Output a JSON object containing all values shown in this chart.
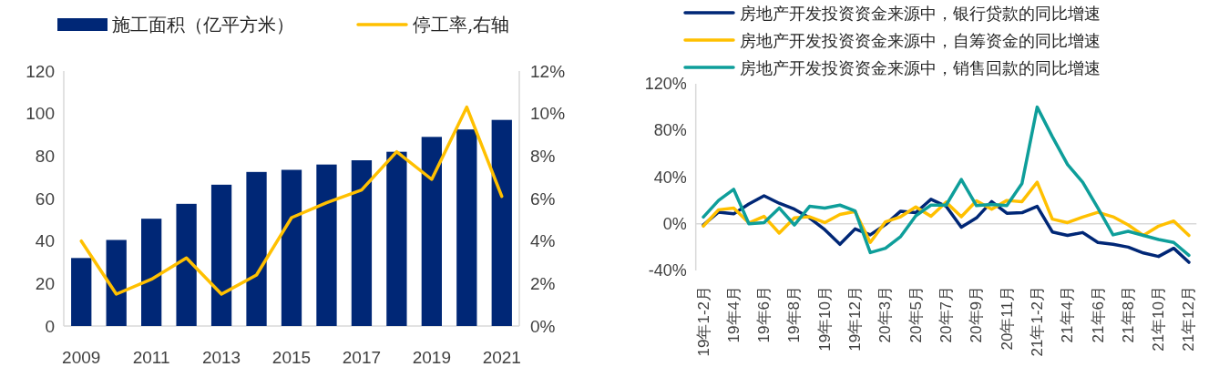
{
  "chart_data": [
    {
      "type": "bar",
      "categories": [
        "2009",
        null,
        "2011",
        null,
        "2013",
        null,
        "2015",
        null,
        "2017",
        null,
        "2019",
        null,
        "2021"
      ],
      "series": [
        {
          "name": "施工面积（亿平方米）",
          "color": "#002776",
          "values": [
            32,
            40.5,
            50.5,
            57.5,
            66.5,
            72.5,
            73.5,
            76,
            78,
            82,
            89,
            92.5,
            97
          ]
        },
        {
          "name": "停工率,右轴",
          "type": "line",
          "axis": "y2",
          "color": "#ffc000",
          "values": [
            4.0,
            1.5,
            2.2,
            3.2,
            1.5,
            2.4,
            5.1,
            5.8,
            6.4,
            8.2,
            6.9,
            10.3,
            6.1
          ]
        }
      ],
      "ylim": [
        0,
        120
      ],
      "yticks": [
        0,
        20,
        40,
        60,
        80,
        100,
        120
      ],
      "y2lim": [
        0,
        12
      ],
      "y2ticks": [
        {
          "value": 0,
          "label": "0%"
        },
        {
          "value": 2,
          "label": "2%"
        },
        {
          "value": 4,
          "label": "4%"
        },
        {
          "value": 6,
          "label": "6%"
        },
        {
          "value": 8,
          "label": "8%"
        },
        {
          "value": 10,
          "label": "10%"
        },
        {
          "value": 12,
          "label": "12%"
        }
      ],
      "legend": "top",
      "line_style": "solid"
    },
    {
      "type": "line",
      "categories": [
        "19年1-2月",
        null,
        "19年4月",
        null,
        "19年6月",
        null,
        "19年8月",
        null,
        "19年10月",
        null,
        "19年12月",
        null,
        "20年3月",
        null,
        "20年5月",
        null,
        "20年7月",
        null,
        "20年9月",
        null,
        "20年11月",
        null,
        "21年1-2月",
        null,
        "21年4月",
        null,
        "21年6月",
        null,
        "21年8月",
        null,
        "21年10月",
        null,
        "21年12月"
      ],
      "series": [
        {
          "name": "房地产开发投资资金来源中，银行贷款的同比增速",
          "color": "#002776",
          "values": [
            -1,
            10,
            8.5,
            17,
            24,
            17.6,
            12.5,
            5,
            -5,
            -17.6,
            -4.4,
            -9.5,
            -0.7,
            10.8,
            9.5,
            21,
            15,
            -3,
            5,
            19,
            9,
            9.5,
            15,
            -7,
            -10,
            -7.5,
            -16,
            -17.6,
            -20,
            -25,
            -28,
            -21,
            -33
          ]
        },
        {
          "name": "房地产开发投资资金来源中，自筹资金的同比增速",
          "color": "#ffc000",
          "values": [
            -2,
            12,
            13.5,
            0.7,
            6.4,
            -8,
            5,
            6,
            1,
            8,
            10.5,
            -16,
            1.7,
            6,
            14.5,
            6.4,
            18.6,
            6,
            19.7,
            12.5,
            20,
            19,
            35.6,
            4,
            1,
            5.8,
            9.8,
            6,
            -1,
            -10,
            -2,
            2.4,
            -10
          ]
        },
        {
          "name": "房地产开发投资资金来源中，销售回款的同比增速",
          "color": "#0e9e9a",
          "values": [
            5.8,
            20,
            29.5,
            0,
            1,
            13.5,
            -1,
            15,
            13.5,
            16,
            11,
            -24.7,
            -21,
            -11,
            6.8,
            16,
            16,
            38,
            15.6,
            16.6,
            15.6,
            34.6,
            100,
            74.6,
            50.8,
            35.6,
            13.5,
            -9.5,
            -6.4,
            -10,
            -13.5,
            -16,
            -27
          ]
        }
      ],
      "ylim": [
        -40,
        120
      ],
      "yticks": [
        {
          "value": -40,
          "label": "-40%"
        },
        {
          "value": 0,
          "label": "0%"
        },
        {
          "value": 40,
          "label": "40%"
        },
        {
          "value": 80,
          "label": "80%"
        },
        {
          "value": 120,
          "label": "120%"
        }
      ],
      "legend": "top",
      "line_style": "solid"
    }
  ]
}
